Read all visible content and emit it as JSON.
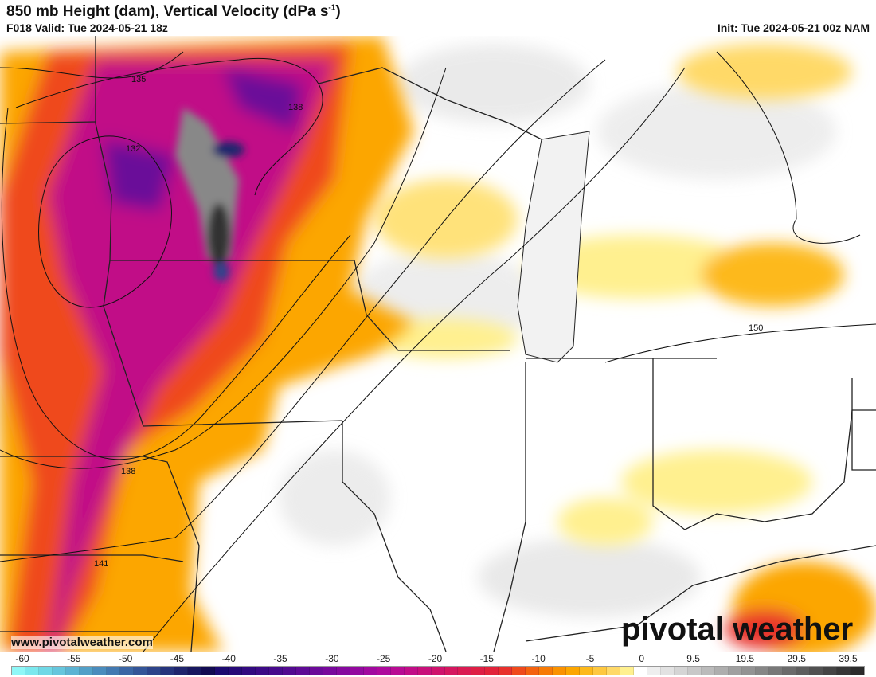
{
  "header": {
    "title": "850 mb Height (dam), Vertical Velocity (dPa s",
    "title_sup": "-1",
    "title_end": ")",
    "valid": "F018 Valid: Tue 2024-05-21 18z",
    "init": "Init: Tue 2024-05-21 00z NAM"
  },
  "map": {
    "contour_labels": [
      "135",
      "138",
      "132",
      "138",
      "141",
      "150"
    ]
  },
  "watermark": "www.pivotalweather.com",
  "logo": "pivotal weather",
  "colorbar": {
    "labels": [
      "-60",
      "-55",
      "-50",
      "-45",
      "-40",
      "-35",
      "-30",
      "-25",
      "-20",
      "-15",
      "-10",
      "-5",
      "0",
      "9.5",
      "19.5",
      "29.5",
      "39.5"
    ],
    "colors": [
      "#8ff7f7",
      "#7be8ee",
      "#70d8e6",
      "#66c6dd",
      "#5cb3d3",
      "#52a0c8",
      "#4a8cbd",
      "#4279b1",
      "#3b66a5",
      "#345598",
      "#2d448a",
      "#26347c",
      "#1f256d",
      "#18175f",
      "#120b52",
      "#1c0a70",
      "#270a78",
      "#320a80",
      "#3c0a86",
      "#470a8c",
      "#520a90",
      "#5e0a95",
      "#6b0a99",
      "#78099c",
      "#85099e",
      "#93099f",
      "#a1099f",
      "#ae0a9c",
      "#b80b93",
      "#c10d87",
      "#c8107a",
      "#cf136c",
      "#d5175f",
      "#da1b52",
      "#de1f45",
      "#e2233a",
      "#e8312c",
      "#ef4a1c",
      "#f4620f",
      "#f77a05",
      "#fa9200",
      "#fca600",
      "#fdb91b",
      "#fec840",
      "#ffd968",
      "#fff08f",
      "#ffffff",
      "#eeeeee",
      "#e2e2e2",
      "#d5d5d5",
      "#c8c8c8",
      "#bbbbbb",
      "#aeaeae",
      "#a0a0a0",
      "#939393",
      "#868686",
      "#787878",
      "#6b6b6b",
      "#5e5e5e",
      "#515151",
      "#444444",
      "#373737",
      "#2b2b2b"
    ]
  }
}
